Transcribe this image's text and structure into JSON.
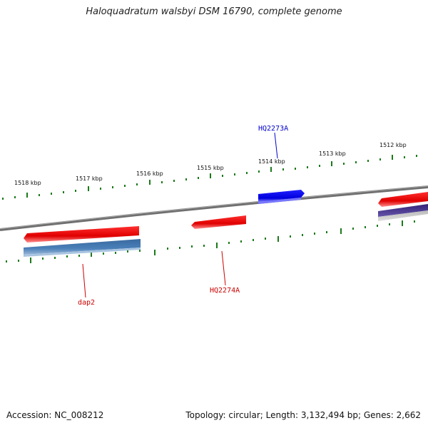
{
  "title": "Haloquadratum walsbyi DSM 16790, complete genome",
  "footer": {
    "accession": "Accession: NC_008212",
    "summary": "Topology: circular; Length: 3,132,494 bp; Genes: 2,662"
  },
  "scale_labels": [
    "1518 kbp",
    "1517 kbp",
    "1516 kbp",
    "1515 kbp",
    "1514 kbp",
    "1513 kbp",
    "1512 kbp"
  ],
  "genes": {
    "hq2273a": {
      "label": "HQ2273A",
      "color": "#0000cc"
    },
    "hq2274a": {
      "label": "HQ2274A",
      "color": "#cc0000"
    },
    "dap2": {
      "label": "dap2",
      "color": "#cc0000"
    }
  },
  "colors": {
    "backbone": "#777777",
    "tick": "#1a7a1a",
    "forward_gene": "#ee1111",
    "blue_gene": "#0000ee",
    "steel_blue_gene": "#4477aa",
    "purple_gene": "#443388"
  }
}
